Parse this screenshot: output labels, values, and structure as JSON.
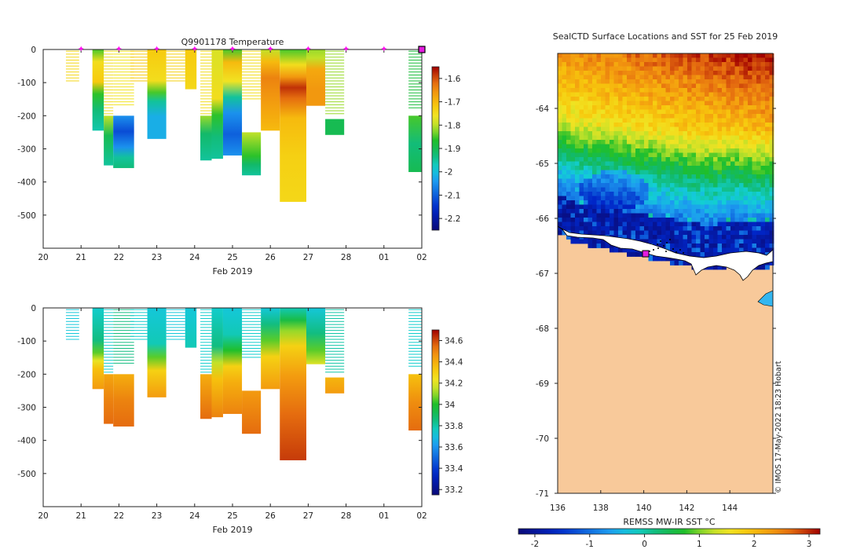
{
  "chart_data": [
    {
      "type": "heatmap",
      "title": "Q9901178  Temperature",
      "xlabel": "Feb 2019",
      "ylabel": "",
      "x_ticks": [
        "20",
        "21",
        "22",
        "23",
        "24",
        "25",
        "26",
        "27",
        "28",
        "01",
        "02"
      ],
      "x_range": [
        0,
        10
      ],
      "y_ticks": [
        0,
        -100,
        -200,
        -300,
        -400,
        -500
      ],
      "ylim": [
        -600,
        0
      ],
      "profile_markers_x": [
        1,
        2,
        3,
        4,
        5,
        6,
        7,
        8,
        9
      ],
      "last_profile_x": 10,
      "colorbar": {
        "ticks": [
          "-1.6",
          "-1.7",
          "-1.8",
          "-1.9",
          "-2",
          "-2.1",
          "-2.2"
        ],
        "range": [
          -2.25,
          -1.55
        ]
      },
      "profiles": [
        {
          "x": 0.6,
          "w": 0.35,
          "type": "sparse",
          "top": -5,
          "bottom": -100,
          "value": -1.74
        },
        {
          "x": 1.3,
          "w": 0.3,
          "top": 0,
          "bottom": -245,
          "stops": [
            [
              0,
              -1.85
            ],
            [
              0.15,
              -1.75
            ],
            [
              0.4,
              -1.72
            ],
            [
              0.55,
              -1.86
            ],
            [
              0.75,
              -1.93
            ],
            [
              1,
              -1.96
            ]
          ]
        },
        {
          "x": 1.6,
          "w": 0.25,
          "top": -200,
          "bottom": -350,
          "stops": [
            [
              0,
              -1.8
            ],
            [
              0.4,
              -1.9
            ],
            [
              1,
              -1.95
            ]
          ]
        },
        {
          "x": 1.6,
          "w": 0.25,
          "type": "sparse",
          "top": -5,
          "bottom": -200,
          "value": -1.75
        },
        {
          "x": 1.85,
          "w": 0.55,
          "top": -200,
          "bottom": -358,
          "stops": [
            [
              0,
              -2.05
            ],
            [
              0.3,
              -2.12
            ],
            [
              0.6,
              -2.05
            ],
            [
              0.8,
              -1.95
            ],
            [
              1,
              -1.93
            ]
          ]
        },
        {
          "x": 1.85,
          "w": 0.55,
          "type": "sparse",
          "top": -5,
          "bottom": -175,
          "value": -1.76
        },
        {
          "x": 2.3,
          "w": 0.45,
          "type": "sparse",
          "top": -5,
          "bottom": -100,
          "value": -1.72
        },
        {
          "x": 2.75,
          "w": 0.5,
          "top": 0,
          "bottom": -270,
          "stops": [
            [
              0,
              -1.72
            ],
            [
              0.35,
              -1.75
            ],
            [
              0.48,
              -1.85
            ],
            [
              0.58,
              -1.95
            ],
            [
              0.75,
              -2.02
            ],
            [
              1,
              -2.02
            ]
          ]
        },
        {
          "x": 3.25,
          "w": 0.5,
          "type": "sparse",
          "top": -5,
          "bottom": -100,
          "value": -1.73
        },
        {
          "x": 3.75,
          "w": 0.3,
          "top": 0,
          "bottom": -120,
          "stops": [
            [
              0,
              -1.72
            ],
            [
              1,
              -1.74
            ]
          ]
        },
        {
          "x": 4.15,
          "w": 0.3,
          "top": -200,
          "bottom": -335,
          "stops": [
            [
              0,
              -1.82
            ],
            [
              0.4,
              -1.92
            ],
            [
              1,
              -1.95
            ]
          ]
        },
        {
          "x": 4.15,
          "w": 0.3,
          "type": "sparse",
          "top": -5,
          "bottom": -200,
          "value": -1.75
        },
        {
          "x": 4.45,
          "w": 0.3,
          "top": 0,
          "bottom": -330,
          "stops": [
            [
              0,
              -1.78
            ],
            [
              0.45,
              -1.75
            ],
            [
              0.6,
              -1.86
            ],
            [
              0.8,
              -1.93
            ],
            [
              1,
              -1.95
            ]
          ]
        },
        {
          "x": 4.75,
          "w": 0.5,
          "top": 0,
          "bottom": -320,
          "stops": [
            [
              0,
              -1.85
            ],
            [
              0.12,
              -1.7
            ],
            [
              0.3,
              -1.76
            ],
            [
              0.45,
              -1.95
            ],
            [
              0.6,
              -2.05
            ],
            [
              0.8,
              -2.1
            ],
            [
              1,
              -2.05
            ]
          ]
        },
        {
          "x": 5.25,
          "w": 0.5,
          "top": -250,
          "bottom": -380,
          "stops": [
            [
              0,
              -1.8
            ],
            [
              0.55,
              -1.86
            ],
            [
              0.75,
              -1.92
            ],
            [
              1,
              -1.95
            ]
          ]
        },
        {
          "x": 5.25,
          "w": 0.5,
          "type": "sparse",
          "top": -5,
          "bottom": -150,
          "value": -1.75
        },
        {
          "x": 5.75,
          "w": 0.5,
          "top": 0,
          "bottom": -245,
          "stops": [
            [
              0,
              -1.8
            ],
            [
              0.15,
              -1.7
            ],
            [
              0.35,
              -1.64
            ],
            [
              0.6,
              -1.66
            ],
            [
              1,
              -1.7
            ]
          ]
        },
        {
          "x": 6.25,
          "w": 0.7,
          "top": 0,
          "bottom": -460,
          "stops": [
            [
              0,
              -1.85
            ],
            [
              0.1,
              -1.75
            ],
            [
              0.18,
              -1.66
            ],
            [
              0.25,
              -1.58
            ],
            [
              0.32,
              -1.62
            ],
            [
              0.45,
              -1.7
            ],
            [
              0.7,
              -1.73
            ],
            [
              1,
              -1.74
            ]
          ]
        },
        {
          "x": 6.95,
          "w": 0.5,
          "top": 0,
          "bottom": -170,
          "stops": [
            [
              0,
              -1.82
            ],
            [
              0.15,
              -1.8
            ],
            [
              0.35,
              -1.68
            ],
            [
              0.7,
              -1.66
            ],
            [
              1,
              -1.66
            ]
          ]
        },
        {
          "x": 7.45,
          "w": 0.5,
          "top": -210,
          "bottom": -258,
          "stops": [
            [
              0,
              -1.9
            ],
            [
              1,
              -1.9
            ]
          ]
        },
        {
          "x": 7.45,
          "w": 0.5,
          "type": "sparse",
          "top": -5,
          "bottom": -200,
          "value": -1.82
        },
        {
          "x": 9.65,
          "w": 0.4,
          "top": -200,
          "bottom": -370,
          "stops": [
            [
              0,
              -1.85
            ],
            [
              0.5,
              -1.93
            ],
            [
              1,
              -1.9
            ]
          ]
        },
        {
          "x": 9.65,
          "w": 0.4,
          "type": "sparse",
          "top": -5,
          "bottom": -180,
          "value": -1.88
        }
      ]
    },
    {
      "type": "heatmap",
      "title": "",
      "xlabel": "Feb 2019",
      "ylabel": "",
      "x_ticks": [
        "20",
        "21",
        "22",
        "23",
        "24",
        "25",
        "26",
        "27",
        "28",
        "01",
        "02"
      ],
      "x_range": [
        0,
        10
      ],
      "y_ticks": [
        0,
        -100,
        -200,
        -300,
        -400,
        -500
      ],
      "ylim": [
        -600,
        0
      ],
      "colorbar": {
        "ticks": [
          "34.6",
          "34.4",
          "34.2",
          "34",
          "33.8",
          "33.6",
          "33.4",
          "33.2"
        ],
        "range": [
          33.15,
          34.7
        ]
      },
      "profiles": [
        {
          "x": 0.6,
          "w": 0.35,
          "type": "sparse",
          "top": -5,
          "bottom": -100,
          "value": 33.72
        },
        {
          "x": 1.3,
          "w": 0.3,
          "top": 0,
          "bottom": -245,
          "stops": [
            [
              0,
              33.75
            ],
            [
              0.4,
              33.85
            ],
            [
              0.55,
              34.05
            ],
            [
              0.65,
              34.22
            ],
            [
              0.75,
              34.35
            ],
            [
              1,
              34.45
            ]
          ]
        },
        {
          "x": 1.6,
          "w": 0.25,
          "top": -200,
          "bottom": -350,
          "stops": [
            [
              0,
              34.42
            ],
            [
              0.5,
              34.5
            ],
            [
              1,
              34.55
            ]
          ]
        },
        {
          "x": 1.6,
          "w": 0.25,
          "type": "sparse",
          "top": -5,
          "bottom": -200,
          "value": 33.75
        },
        {
          "x": 1.85,
          "w": 0.55,
          "top": -200,
          "bottom": -358,
          "stops": [
            [
              0,
              34.4
            ],
            [
              0.5,
              34.5
            ],
            [
              1,
              34.55
            ]
          ]
        },
        {
          "x": 1.85,
          "w": 0.55,
          "type": "sparse",
          "top": -5,
          "bottom": -175,
          "value": 33.85
        },
        {
          "x": 2.3,
          "w": 0.45,
          "type": "sparse",
          "top": -5,
          "bottom": -100,
          "value": 33.75
        },
        {
          "x": 2.75,
          "w": 0.5,
          "top": 0,
          "bottom": -270,
          "stops": [
            [
              0,
              33.72
            ],
            [
              0.4,
              33.78
            ],
            [
              0.55,
              34.05
            ],
            [
              0.7,
              34.3
            ],
            [
              1,
              34.45
            ]
          ]
        },
        {
          "x": 3.25,
          "w": 0.5,
          "type": "sparse",
          "top": -5,
          "bottom": -100,
          "value": 33.72
        },
        {
          "x": 3.75,
          "w": 0.3,
          "top": 0,
          "bottom": -120,
          "stops": [
            [
              0,
              33.72
            ],
            [
              1,
              33.78
            ]
          ]
        },
        {
          "x": 4.15,
          "w": 0.3,
          "top": -200,
          "bottom": -335,
          "stops": [
            [
              0,
              34.4
            ],
            [
              1,
              34.55
            ]
          ]
        },
        {
          "x": 4.15,
          "w": 0.3,
          "type": "sparse",
          "top": -5,
          "bottom": -200,
          "value": 33.75
        },
        {
          "x": 4.45,
          "w": 0.3,
          "top": 0,
          "bottom": -330,
          "stops": [
            [
              0,
              33.75
            ],
            [
              0.35,
              33.85
            ],
            [
              0.5,
              34.15
            ],
            [
              0.65,
              34.35
            ],
            [
              1,
              34.5
            ]
          ]
        },
        {
          "x": 4.75,
          "w": 0.5,
          "top": 0,
          "bottom": -320,
          "stops": [
            [
              0,
              33.72
            ],
            [
              0.25,
              33.78
            ],
            [
              0.4,
              34.0
            ],
            [
              0.55,
              34.3
            ],
            [
              0.7,
              34.4
            ],
            [
              1,
              34.5
            ]
          ]
        },
        {
          "x": 5.25,
          "w": 0.5,
          "top": -250,
          "bottom": -380,
          "stops": [
            [
              0,
              34.45
            ],
            [
              1,
              34.55
            ]
          ]
        },
        {
          "x": 5.25,
          "w": 0.5,
          "type": "sparse",
          "top": -5,
          "bottom": -150,
          "value": 33.75
        },
        {
          "x": 5.75,
          "w": 0.5,
          "top": 0,
          "bottom": -245,
          "stops": [
            [
              0,
              33.72
            ],
            [
              0.2,
              33.85
            ],
            [
              0.4,
              34.05
            ],
            [
              0.6,
              34.3
            ],
            [
              1,
              34.45
            ]
          ]
        },
        {
          "x": 6.25,
          "w": 0.7,
          "top": 0,
          "bottom": -460,
          "stops": [
            [
              0,
              33.78
            ],
            [
              0.08,
              33.95
            ],
            [
              0.15,
              34.1
            ],
            [
              0.25,
              34.3
            ],
            [
              0.45,
              34.45
            ],
            [
              0.7,
              34.55
            ],
            [
              1,
              34.62
            ]
          ]
        },
        {
          "x": 6.95,
          "w": 0.5,
          "top": 0,
          "bottom": -170,
          "stops": [
            [
              0,
              33.72
            ],
            [
              0.45,
              33.85
            ],
            [
              0.75,
              34.05
            ],
            [
              1,
              34.2
            ]
          ]
        },
        {
          "x": 7.45,
          "w": 0.5,
          "top": -210,
          "bottom": -258,
          "stops": [
            [
              0,
              34.38
            ],
            [
              1,
              34.45
            ]
          ]
        },
        {
          "x": 7.45,
          "w": 0.5,
          "type": "sparse",
          "top": -5,
          "bottom": -200,
          "value": 33.8
        },
        {
          "x": 9.65,
          "w": 0.4,
          "top": -200,
          "bottom": -370,
          "stops": [
            [
              0,
              34.35
            ],
            [
              0.5,
              34.48
            ],
            [
              1,
              34.55
            ]
          ]
        },
        {
          "x": 9.65,
          "w": 0.4,
          "type": "sparse",
          "top": -5,
          "bottom": -180,
          "value": 33.75
        }
      ]
    },
    {
      "type": "heatmap",
      "title": "SealCTD Surface Locations and SST for 25 Feb 2019",
      "xlabel": "",
      "ylabel": "",
      "x_ticks": [
        "136",
        "138",
        "140",
        "142",
        "144"
      ],
      "x_range": [
        136,
        146
      ],
      "y_ticks": [
        "-64",
        "-65",
        "-66",
        "-67",
        "-68",
        "-69",
        "-70",
        "-71"
      ],
      "ylim": [
        -71,
        -63
      ],
      "colorbar": {
        "label": "REMSS MW-IR SST °C",
        "ticks": [
          "-2",
          "-1",
          "0",
          "1",
          "2",
          "3"
        ],
        "range": [
          -2.3,
          3.2
        ]
      },
      "credit": "© IMOS 17-May-2022 18:23 Hobart",
      "marker": {
        "lon": 140.1,
        "lat": -66.65
      }
    }
  ]
}
